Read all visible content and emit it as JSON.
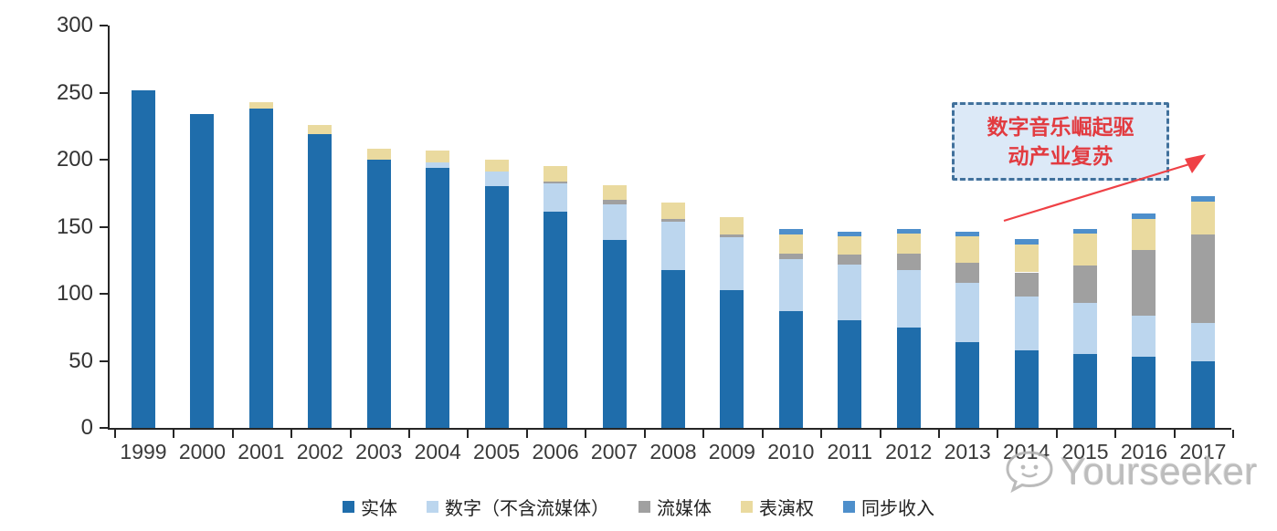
{
  "chart_data": {
    "type": "bar",
    "stacked": true,
    "title": "",
    "xlabel": "",
    "ylabel": "",
    "ylim": [
      0,
      300
    ],
    "yticks": [
      0,
      50,
      100,
      150,
      200,
      250,
      300
    ],
    "grid": false,
    "legend_position": "bottom",
    "categories": [
      "1999",
      "2000",
      "2001",
      "2002",
      "2003",
      "2004",
      "2005",
      "2006",
      "2007",
      "2008",
      "2009",
      "2010",
      "2011",
      "2012",
      "2013",
      "2014",
      "2015",
      "2016",
      "2017"
    ],
    "series": [
      {
        "name": "实体",
        "color": "#1F6DAB",
        "values": [
          252,
          234,
          238,
          219,
          200,
          194,
          180,
          161,
          140,
          118,
          103,
          87,
          80,
          75,
          64,
          58,
          55,
          53,
          50
        ]
      },
      {
        "name": "数字（不含流媒体）",
        "color": "#BCD6EE",
        "values": [
          0,
          0,
          0,
          0,
          0,
          4,
          11,
          21,
          27,
          36,
          39,
          39,
          42,
          43,
          44,
          40,
          38,
          31,
          28
        ]
      },
      {
        "name": "流媒体",
        "color": "#A0A0A0",
        "values": [
          0,
          0,
          0,
          0,
          0,
          0,
          0,
          2,
          3,
          2,
          2,
          4,
          7,
          12,
          15,
          18,
          28,
          49,
          66
        ]
      },
      {
        "name": "表演权",
        "color": "#EADA9F",
        "values": [
          0,
          0,
          5,
          7,
          8,
          9,
          9,
          11,
          11,
          12,
          13,
          14,
          14,
          15,
          20,
          21,
          24,
          23,
          25
        ]
      },
      {
        "name": "同步收入",
        "color": "#4E8FCB",
        "values": [
          0,
          0,
          0,
          0,
          0,
          0,
          0,
          0,
          0,
          0,
          0,
          4,
          3,
          3,
          3,
          4,
          3,
          4,
          4
        ]
      }
    ],
    "totals": [
      252,
      234,
      243,
      226,
      208,
      207,
      200,
      195,
      181,
      168,
      157,
      148,
      146,
      148,
      146,
      141,
      148,
      160,
      173
    ]
  },
  "annotation": {
    "line1": "数字音乐崛起驱",
    "line2": "动产业复苏",
    "text_color": "#E23B40",
    "box_fill": "#DCE9F7",
    "box_border": "#41719C",
    "arrow_color": "#EF4146"
  },
  "watermark": {
    "text": "Yourseeker",
    "icon": "speech-bubble-icon",
    "color": "#BDBDBD"
  }
}
